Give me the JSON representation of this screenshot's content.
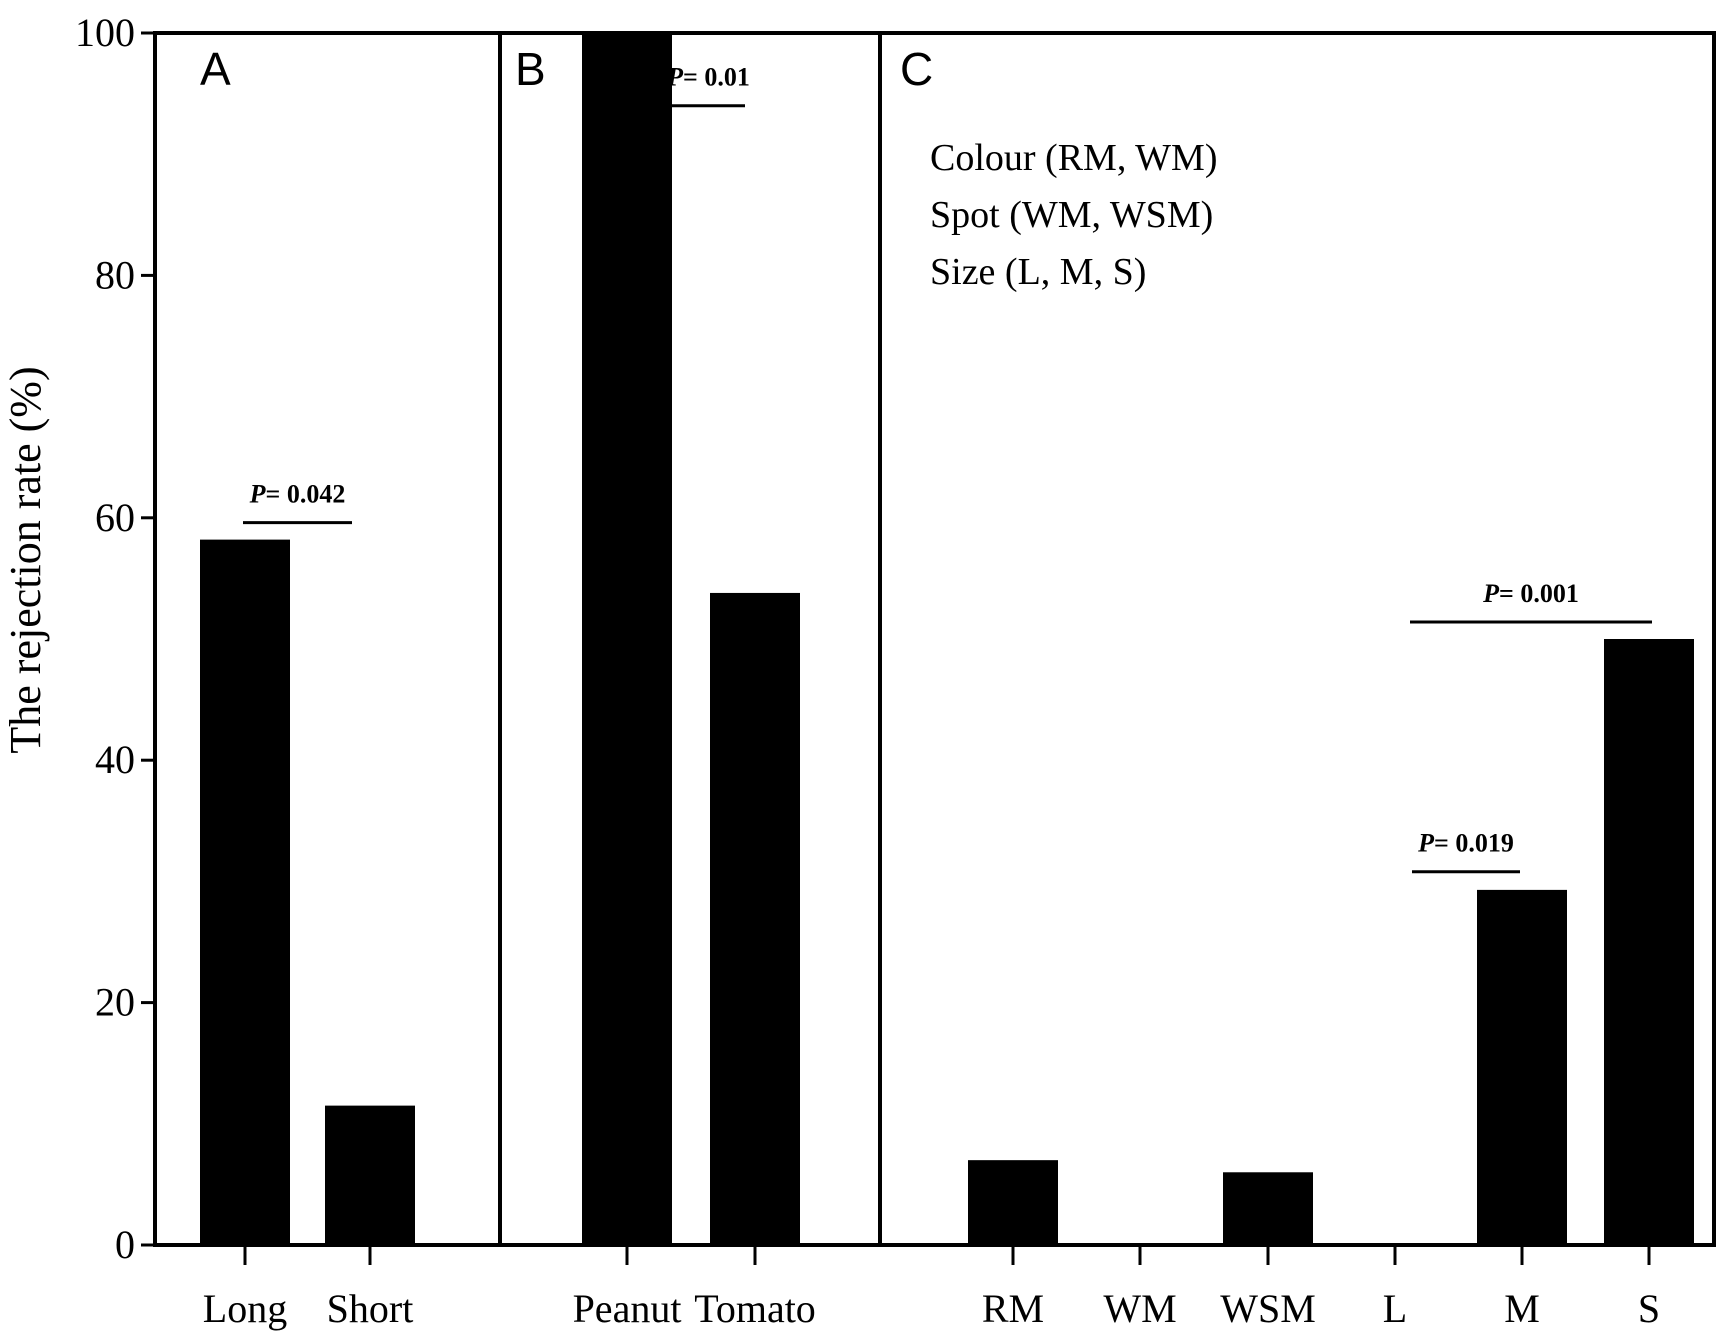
{
  "chart_data": {
    "type": "bar",
    "ylabel": "The rejection rate (%)",
    "ylim": [
      0,
      100
    ],
    "yticks": [
      "0",
      "20",
      "40",
      "60",
      "80",
      "100"
    ],
    "color": "#000000",
    "panels": [
      {
        "label": "A",
        "categories": [
          "Long",
          "Short"
        ],
        "values": [
          58.2,
          11.5
        ],
        "annotations": [
          {
            "text_italic": "P",
            "text": "= 0.042",
            "from": 0,
            "to": 1,
            "y": 59.6
          }
        ]
      },
      {
        "label": "B",
        "categories": [
          "Peanut",
          "Tomato"
        ],
        "values": [
          100,
          53.8
        ],
        "annotations": [
          {
            "text_italic": "P",
            "text": "= 0.01",
            "from": 0,
            "to": 1,
            "y": 94
          }
        ]
      },
      {
        "label": "C",
        "categories": [
          "RM",
          "WM",
          "WSM",
          "L",
          "M",
          "S"
        ],
        "values": [
          7.0,
          0,
          6.0,
          0,
          29.3,
          50.0
        ],
        "legend": [
          "Colour (RM, WM)",
          "Spot (WM, WSM)",
          "Size (L, M, S)"
        ],
        "annotations": [
          {
            "text_italic": "P",
            "text": "= 0.019",
            "from": 3,
            "to": 4,
            "y": 30.8
          },
          {
            "text_italic": "P",
            "text": "= 0.001",
            "from": 3,
            "to": 5,
            "y": 51.4
          }
        ]
      }
    ]
  }
}
